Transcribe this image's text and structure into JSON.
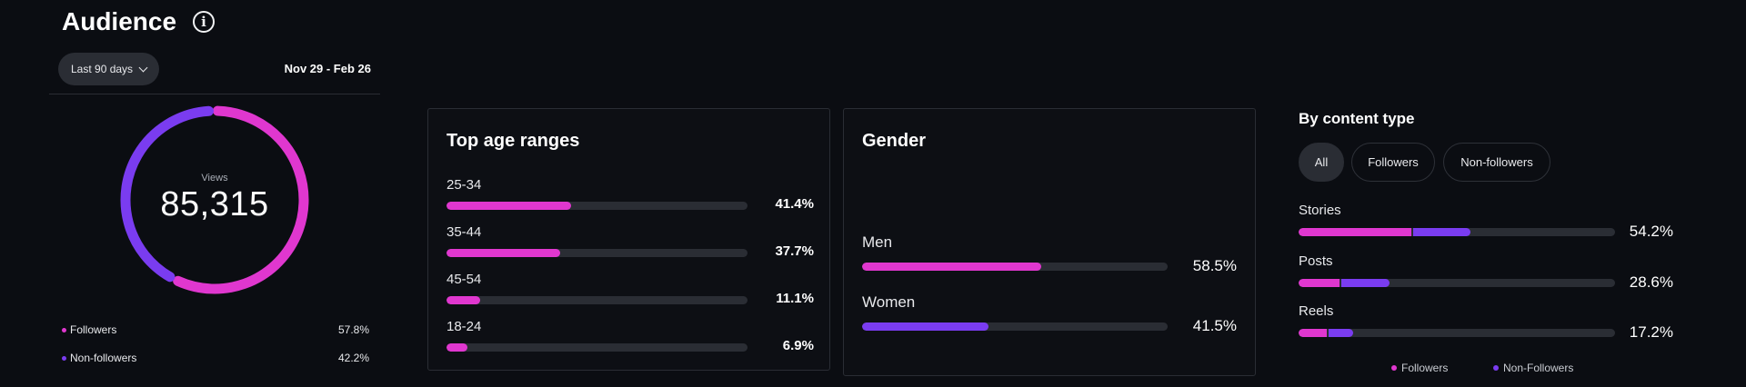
{
  "header": {
    "title": "Audience",
    "info_icon": "info-icon"
  },
  "filter": {
    "range_label": "Last 90 days",
    "date_range": "Nov 29 - Feb 26"
  },
  "colors": {
    "followers": "#e037cf",
    "non_followers": "#7a3cf0",
    "track": "#2a2d34"
  },
  "views": {
    "label": "Views",
    "value": "85,315",
    "followers_fraction": 0.578,
    "legend": [
      {
        "label": "Followers",
        "pct": "57.8%"
      },
      {
        "label": "Non-followers",
        "pct": "42.2%"
      }
    ]
  },
  "age": {
    "title": "Top age ranges",
    "items": [
      {
        "label": "25-34",
        "pct": "41.4%",
        "value": 41.4
      },
      {
        "label": "35-44",
        "pct": "37.7%",
        "value": 37.7
      },
      {
        "label": "45-54",
        "pct": "11.1%",
        "value": 11.1
      },
      {
        "label": "18-24",
        "pct": "6.9%",
        "value": 6.9
      }
    ]
  },
  "gender": {
    "title": "Gender",
    "items": [
      {
        "label": "Men",
        "pct": "58.5%",
        "value": 58.5
      },
      {
        "label": "Women",
        "pct": "41.5%",
        "value": 41.5
      }
    ]
  },
  "content_type": {
    "title": "By content type",
    "tabs": [
      "All",
      "Followers",
      "Non-followers"
    ],
    "active_tab": "All",
    "items": [
      {
        "label": "Stories",
        "pct": "54.2%",
        "followers": 35.5,
        "non_followers": 18.7
      },
      {
        "label": "Posts",
        "pct": "28.6%",
        "followers": 12.8,
        "non_followers": 15.8
      },
      {
        "label": "Reels",
        "pct": "17.2%",
        "followers": 9.0,
        "non_followers": 8.2
      }
    ],
    "legend": [
      {
        "label": "Followers"
      },
      {
        "label": "Non-Followers"
      }
    ]
  }
}
